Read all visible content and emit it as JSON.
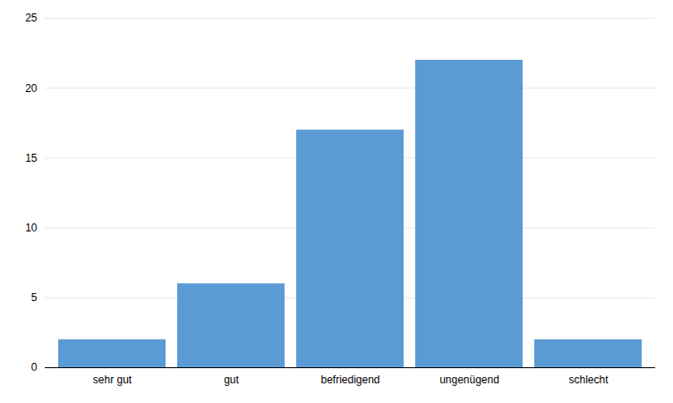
{
  "chart_data": {
    "type": "bar",
    "categories": [
      "sehr gut",
      "gut",
      "befriedigend",
      "ungenügend",
      "schlecht"
    ],
    "values": [
      2,
      6,
      17,
      22,
      2
    ],
    "color": "#5B9BD5",
    "ylim": [
      0,
      25
    ],
    "yticks": [
      0,
      5,
      10,
      15,
      20,
      25
    ],
    "grid": true
  }
}
